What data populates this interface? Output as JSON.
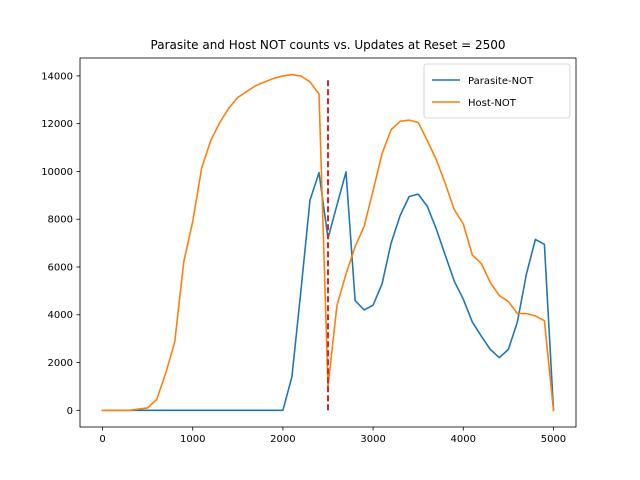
{
  "chart_data": {
    "type": "line",
    "title": "Parasite and Host NOT counts vs. Updates at Reset = 2500",
    "xlabel": "",
    "ylabel": "",
    "xlim": [
      -250,
      5250
    ],
    "ylim": [
      -700,
      14750
    ],
    "xticks": [
      0,
      1000,
      2000,
      3000,
      4000,
      5000
    ],
    "yticks": [
      0,
      2000,
      4000,
      6000,
      8000,
      10000,
      12000,
      14000
    ],
    "grid": false,
    "legend_position": "upper right",
    "series": [
      {
        "name": "Parasite-NOT",
        "color": "#1f77b4",
        "x": [
          0,
          100,
          200,
          300,
          400,
          500,
          600,
          700,
          800,
          900,
          1000,
          1100,
          1200,
          1300,
          1400,
          1500,
          1600,
          1700,
          1800,
          1900,
          2000,
          2100,
          2200,
          2300,
          2400,
          2500,
          2600,
          2700,
          2800,
          2900,
          3000,
          3100,
          3200,
          3300,
          3400,
          3500,
          3600,
          3700,
          3800,
          3900,
          4000,
          4100,
          4200,
          4300,
          4400,
          4500,
          4600,
          4700,
          4800,
          4900,
          5000
        ],
        "y": [
          0,
          0,
          0,
          0,
          0,
          0,
          0,
          0,
          0,
          0,
          0,
          0,
          0,
          0,
          0,
          0,
          0,
          0,
          0,
          0,
          0,
          1400,
          5000,
          8800,
          9950,
          7200,
          8600,
          9980,
          4600,
          4200,
          4400,
          5300,
          7000,
          8150,
          8950,
          9050,
          8550,
          7600,
          6500,
          5400,
          4650,
          3700,
          3100,
          2550,
          2200,
          2550,
          3700,
          5700,
          7150,
          6950,
          0
        ]
      },
      {
        "name": "Host-NOT",
        "color": "#ff7f0e",
        "x": [
          0,
          100,
          200,
          300,
          400,
          500,
          600,
          700,
          800,
          900,
          1000,
          1100,
          1200,
          1300,
          1400,
          1500,
          1600,
          1700,
          1800,
          1900,
          2000,
          2100,
          2200,
          2300,
          2400,
          2500,
          2600,
          2700,
          2800,
          2900,
          3000,
          3100,
          3200,
          3300,
          3400,
          3500,
          3600,
          3700,
          3800,
          3900,
          4000,
          4100,
          4200,
          4300,
          4400,
          4500,
          4600,
          4700,
          4800,
          4900,
          5000
        ],
        "y": [
          0,
          0,
          0,
          0,
          50,
          100,
          450,
          1550,
          2850,
          6200,
          7900,
          10150,
          11300,
          12050,
          12650,
          13100,
          13350,
          13600,
          13750,
          13900,
          14000,
          14050,
          14000,
          13750,
          13250,
          1000,
          4400,
          5700,
          6850,
          7700,
          9200,
          10750,
          11750,
          12100,
          12150,
          12050,
          11300,
          10500,
          9500,
          8400,
          7800,
          6500,
          6150,
          5350,
          4800,
          4550,
          4050,
          4050,
          3950,
          3750,
          0
        ]
      }
    ],
    "annotations": [
      {
        "kind": "vertical-dashed-line",
        "x": 2500,
        "y_range": [
          0,
          13900
        ],
        "color": "#d62728"
      }
    ]
  }
}
